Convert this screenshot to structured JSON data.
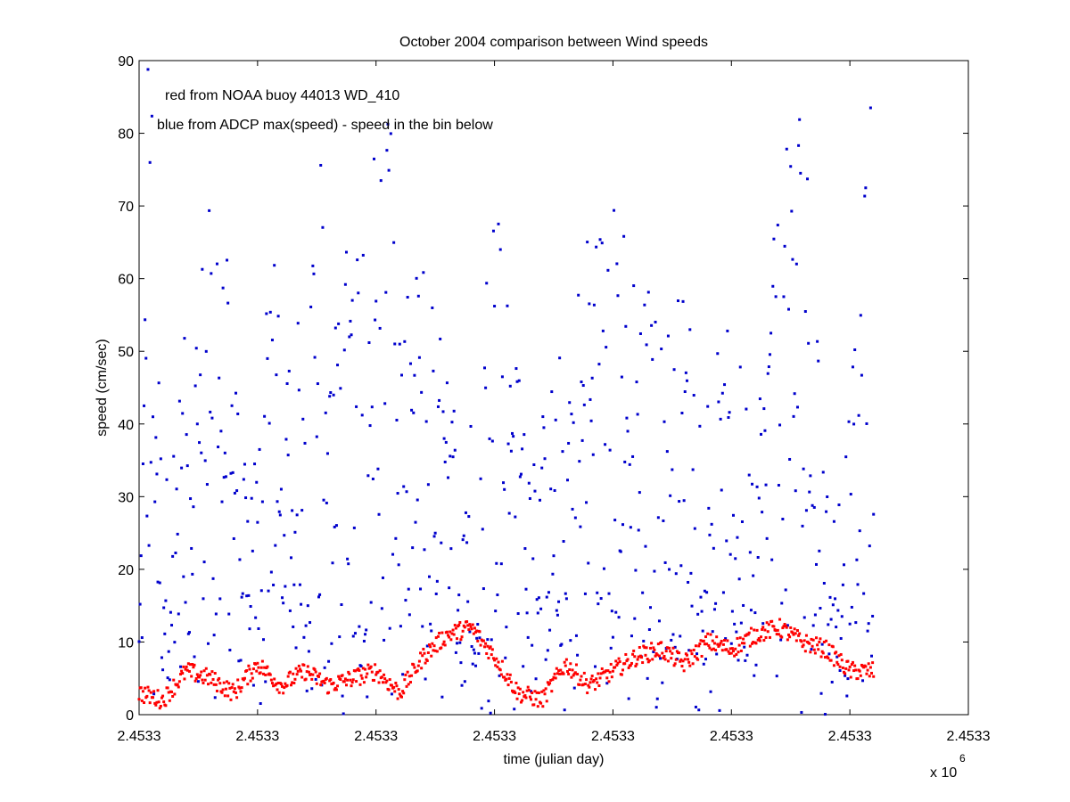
{
  "chart_data": {
    "type": "scatter",
    "title": "October 2004 comparison between Wind speeds",
    "xlabel": "time (julian day)",
    "ylabel": "speed (cm/sec)",
    "x_multiplier_label": "x 10",
    "x_multiplier_exponent": "6",
    "x_tick_labels": [
      "2.4533",
      "2.4533",
      "2.4533",
      "2.4533",
      "2.4533",
      "2.4533",
      "2.4533",
      "2.4533"
    ],
    "y_ticks": [
      0,
      10,
      20,
      30,
      40,
      50,
      60,
      70,
      80,
      90
    ],
    "xlim": [
      2453280.0,
      2453315.0
    ],
    "ylim": [
      0,
      90
    ],
    "grid": false,
    "annotations": [
      "red from NOAA buoy 44013 WD_410",
      "blue from ADCP max(speed) - speed in the bin below"
    ],
    "series": [
      {
        "color": "#0000cc",
        "marker": "point",
        "description": "ADCP max(speed) minus speed in bin below, hourly, 2453280.0–2453311.0; values mostly 0–75 cm/sec with peaks near 89",
        "x_start": 2453280.0,
        "x_end": 2453311.0,
        "samples_per_day": 24,
        "approx_values": [
          [
            2453280.0,
            12
          ],
          [
            2453280.2,
            44
          ],
          [
            2453280.4,
            89
          ],
          [
            2453281.0,
            25
          ],
          [
            2453282.0,
            45
          ],
          [
            2453283.0,
            60
          ],
          [
            2453283.6,
            79
          ],
          [
            2453284.0,
            40
          ],
          [
            2453285.0,
            30
          ],
          [
            2453285.6,
            73
          ],
          [
            2453286.0,
            35
          ],
          [
            2453287.0,
            50
          ],
          [
            2453287.5,
            80
          ],
          [
            2453288.0,
            40
          ],
          [
            2453289.0,
            60
          ],
          [
            2453290.0,
            70
          ],
          [
            2453290.5,
            74
          ],
          [
            2453291.0,
            45
          ],
          [
            2453292.0,
            55
          ],
          [
            2453293.0,
            40
          ],
          [
            2453294.0,
            35
          ],
          [
            2453295.0,
            65
          ],
          [
            2453296.0,
            40
          ],
          [
            2453297.0,
            35
          ],
          [
            2453298.0,
            45
          ],
          [
            2453299.0,
            58
          ],
          [
            2453300.0,
            60
          ],
          [
            2453301.0,
            55
          ],
          [
            2453302.0,
            45
          ],
          [
            2453303.0,
            50
          ],
          [
            2453304.0,
            40
          ],
          [
            2453305.0,
            45
          ],
          [
            2453306.0,
            35
          ],
          [
            2453307.0,
            60
          ],
          [
            2453308.0,
            77
          ],
          [
            2453309.0,
            25
          ],
          [
            2453310.0,
            35
          ],
          [
            2453311.0,
            77
          ]
        ]
      },
      {
        "color": "#ff0000",
        "marker": "point",
        "description": "NOAA buoy 44013 WD_410 wind speed, hourly, 2453280.0–2453311.0",
        "x_start": 2453280.0,
        "x_end": 2453311.0,
        "samples_per_day": 24,
        "approx_values": [
          [
            2453280.0,
            3
          ],
          [
            2453281.0,
            2
          ],
          [
            2453282.0,
            6
          ],
          [
            2453283.0,
            5
          ],
          [
            2453284.0,
            3
          ],
          [
            2453285.0,
            7
          ],
          [
            2453286.0,
            4
          ],
          [
            2453287.0,
            6
          ],
          [
            2453288.0,
            4
          ],
          [
            2453289.0,
            5
          ],
          [
            2453290.0,
            6
          ],
          [
            2453291.0,
            3
          ],
          [
            2453292.0,
            8
          ],
          [
            2453293.0,
            11
          ],
          [
            2453294.0,
            12
          ],
          [
            2453295.0,
            8
          ],
          [
            2453296.0,
            3
          ],
          [
            2453297.0,
            2
          ],
          [
            2453298.0,
            7
          ],
          [
            2453299.0,
            4
          ],
          [
            2453300.0,
            6
          ],
          [
            2453301.0,
            8
          ],
          [
            2453302.0,
            9
          ],
          [
            2453303.0,
            7
          ],
          [
            2453304.0,
            10
          ],
          [
            2453305.0,
            9
          ],
          [
            2453306.0,
            11
          ],
          [
            2453307.0,
            12
          ],
          [
            2453308.0,
            10
          ],
          [
            2453309.0,
            9
          ],
          [
            2453310.0,
            6
          ],
          [
            2453311.0,
            6
          ]
        ]
      }
    ]
  }
}
